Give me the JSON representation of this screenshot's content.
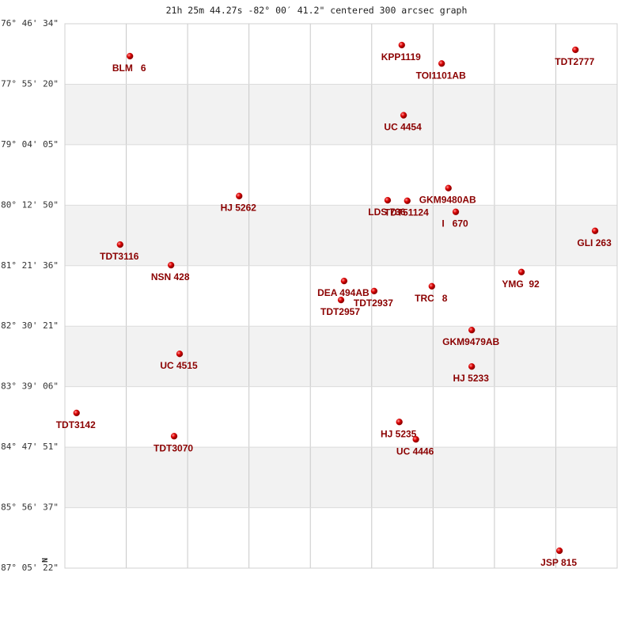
{
  "chart_data": {
    "type": "scatter",
    "title": "21h 25m 44.27s -82° 00′ 41.2\" centered 300 arcsec graph",
    "north_label": "N",
    "color": "#cc0000",
    "label_color": "#8b0000",
    "xlim": [
      0,
      9
    ],
    "xticks": [
      1,
      2,
      3,
      4,
      5,
      6,
      7,
      8
    ],
    "ylim": [
      -87.0894,
      -76.7761
    ],
    "yticks": [
      {
        "value": -76.7761,
        "label": "-76° 46' 34\""
      },
      {
        "value": -77.9222,
        "label": "-77° 55' 20\""
      },
      {
        "value": -79.0681,
        "label": "-79° 04' 05\""
      },
      {
        "value": -80.2139,
        "label": "-80° 12' 50\""
      },
      {
        "value": -81.36,
        "label": "-81° 21' 36\""
      },
      {
        "value": -82.5058,
        "label": "-82° 30' 21\""
      },
      {
        "value": -83.6517,
        "label": "-83° 39' 06\""
      },
      {
        "value": -84.7975,
        "label": "-84° 47' 51\""
      },
      {
        "value": -85.9436,
        "label": "-85° 56' 37\""
      },
      {
        "value": -87.0894,
        "label": "-87° 05' 22\""
      }
    ],
    "grid": true,
    "banded": true,
    "points": [
      {
        "label": "BLM   6",
        "x": 1.06,
        "y": -77.39
      },
      {
        "label": "KPP1119",
        "x": 5.49,
        "y": -77.18
      },
      {
        "label": "TOI1101AB",
        "x": 6.14,
        "y": -77.53
      },
      {
        "label": "TDT2777",
        "x": 8.32,
        "y": -77.27
      },
      {
        "label": "UC 4454",
        "x": 5.52,
        "y": -78.51
      },
      {
        "label": "HJ 5262",
        "x": 2.84,
        "y": -80.04
      },
      {
        "label": "LDS 736",
        "x": 5.26,
        "y": -80.12
      },
      {
        "label": "TDT51124",
        "x": 5.58,
        "y": -80.13
      },
      {
        "label": "GKM9480AB",
        "x": 6.25,
        "y": -79.89
      },
      {
        "label": "I   670",
        "x": 6.37,
        "y": -80.34
      },
      {
        "label": "GLI 263",
        "x": 8.64,
        "y": -80.7
      },
      {
        "label": "TDT3116",
        "x": 0.9,
        "y": -80.96
      },
      {
        "label": "NSN 428",
        "x": 1.73,
        "y": -81.35
      },
      {
        "label": "YMG  92",
        "x": 7.44,
        "y": -81.48
      },
      {
        "label": "DEA 494AB",
        "x": 4.55,
        "y": -81.65
      },
      {
        "label": "TDT2937",
        "x": 5.04,
        "y": -81.84
      },
      {
        "label": "TRC   8",
        "x": 5.98,
        "y": -81.75
      },
      {
        "label": "TDT2957",
        "x": 4.5,
        "y": -82.01
      },
      {
        "label": "GKM9479AB",
        "x": 6.63,
        "y": -82.58
      },
      {
        "label": "UC 4515",
        "x": 1.87,
        "y": -83.03
      },
      {
        "label": "HJ 5233",
        "x": 6.63,
        "y": -83.27
      },
      {
        "label": "TDT3142",
        "x": 0.19,
        "y": -84.15
      },
      {
        "label": "HJ 5235",
        "x": 5.45,
        "y": -84.32
      },
      {
        "label": "TDT3070",
        "x": 1.78,
        "y": -84.59
      },
      {
        "label": "UC 4446",
        "x": 5.72,
        "y": -84.65
      },
      {
        "label": "JSP 815",
        "x": 8.06,
        "y": -86.76
      }
    ]
  }
}
